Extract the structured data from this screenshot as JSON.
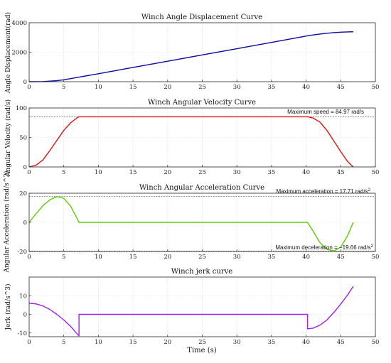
{
  "xlabel": "Time (s)",
  "chart_data": [
    {
      "type": "line",
      "title": "Winch Angle Displacement Curve",
      "ylabel": "Angle Displacement(rad)",
      "xlim": [
        0,
        50
      ],
      "ylim": [
        0,
        4000
      ],
      "xticks": [
        0,
        5,
        10,
        15,
        20,
        25,
        30,
        35,
        40,
        45,
        50
      ],
      "yticks": [
        0,
        2000,
        4000
      ],
      "grid": true,
      "color": "#0a0a9e",
      "series": [
        {
          "x": [
            0,
            2,
            4,
            5,
            6,
            7.2,
            10,
            15,
            20,
            25,
            30,
            35,
            40.2,
            41,
            42,
            43,
            44,
            45,
            46,
            46.8
          ],
          "y": [
            0,
            10,
            70,
            130,
            210,
            310,
            540,
            965,
            1390,
            1815,
            2240,
            2665,
            3110,
            3170,
            3230,
            3285,
            3330,
            3360,
            3378,
            3385
          ]
        }
      ]
    },
    {
      "type": "line",
      "title": "Winch Angular Velocity Curve",
      "ylabel": "Angular Velocity (rad/s)",
      "xlim": [
        0,
        50
      ],
      "ylim": [
        0,
        100
      ],
      "xticks": [
        0,
        5,
        10,
        15,
        20,
        25,
        30,
        35,
        40,
        45,
        50
      ],
      "yticks": [
        0,
        50,
        100
      ],
      "grid": true,
      "color": "#e01010",
      "reference_y": 84.97,
      "annotation": "Maximum speed = 84.97 rad/s",
      "series": [
        {
          "x": [
            0,
            1,
            2,
            3,
            4,
            5,
            6,
            7,
            7.2,
            10,
            20,
            30,
            40.2,
            41,
            42,
            43,
            44,
            45,
            46,
            46.8
          ],
          "y": [
            0,
            3,
            12,
            28,
            45,
            62,
            75,
            84,
            84.97,
            84.97,
            84.97,
            84.97,
            84.97,
            83,
            76,
            62,
            44,
            26,
            9,
            0
          ]
        }
      ]
    },
    {
      "type": "line",
      "title": "Winch Angular Acceleration Curve",
      "ylabel": "Angular Acceleration (rad/s^2)",
      "xlim": [
        0,
        50
      ],
      "ylim": [
        -20,
        20
      ],
      "xticks": [
        0,
        5,
        10,
        15,
        20,
        25,
        30,
        35,
        40,
        45,
        50
      ],
      "yticks": [
        -20,
        0,
        20
      ],
      "grid": true,
      "color": "#5ccc00",
      "reference_y_top": 17.71,
      "reference_y_bottom": -19.66,
      "annotation_top": "Maximum acceleration = 17.71 rad/s",
      "annotation_bottom": "Maximum deceleration = −19.66 rad/s",
      "annotation_sup": "2",
      "series": [
        {
          "x": [
            0,
            1,
            2,
            3,
            4,
            5,
            6,
            7,
            7.2,
            10,
            20,
            30,
            40.2,
            41,
            42,
            43,
            44,
            45,
            46,
            46.8
          ],
          "y": [
            0,
            6,
            11.5,
            15.5,
            17.71,
            16.5,
            11,
            2,
            0,
            0,
            0,
            0,
            0,
            -6,
            -14,
            -18.5,
            -19.66,
            -17,
            -9,
            0
          ]
        }
      ]
    },
    {
      "type": "line",
      "title": "Winch jerk curve",
      "ylabel": "Jerk (rad/s^3)",
      "xlim": [
        0,
        50
      ],
      "ylim": [
        -12,
        20
      ],
      "xticks": [
        0,
        5,
        10,
        15,
        20,
        25,
        30,
        35,
        40,
        45,
        50
      ],
      "yticks": [
        -10,
        0,
        10
      ],
      "grid": true,
      "color": "#a020f0",
      "series": [
        {
          "x": [
            0,
            1,
            2,
            3,
            4,
            5,
            6,
            7,
            7.2,
            7.2,
            10,
            20,
            30,
            40.2,
            40.2,
            41,
            42,
            43,
            44,
            45,
            46,
            46.8
          ],
          "y": [
            6,
            5.6,
            4.5,
            2.6,
            0,
            -3,
            -6.5,
            -10.8,
            -11.5,
            0,
            0,
            0,
            0,
            0,
            -7.8,
            -7.4,
            -5.8,
            -3,
            1,
            5.5,
            10.5,
            15
          ]
        }
      ]
    }
  ]
}
